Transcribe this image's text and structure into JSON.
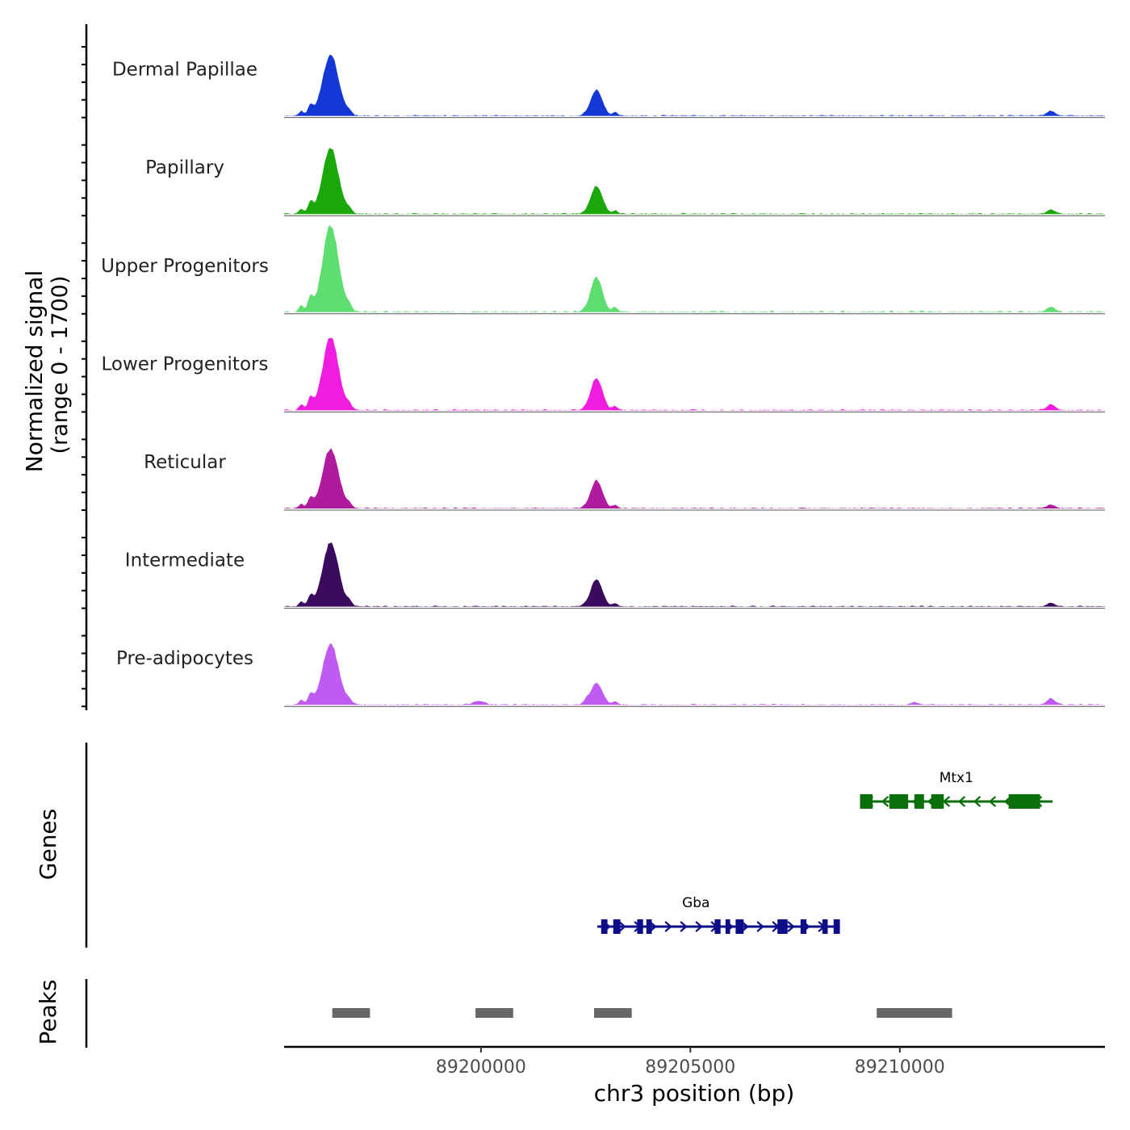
{
  "chart_data": {
    "type": "area",
    "title": "",
    "ylabel_line1": "Normalized signal",
    "ylabel_line2": "(range 0 - 1700)",
    "ylim": [
      0,
      1700
    ],
    "xlabel": "chr3 position (bp)",
    "xlim": [
      89195300,
      89214900
    ],
    "x_ticks": [
      {
        "value": 89200000,
        "label": "89200000"
      },
      {
        "value": 89205000,
        "label": "89205000"
      },
      {
        "value": 89210000,
        "label": "89210000"
      }
    ],
    "series": [
      {
        "name": "Dermal Papillae",
        "color": "#1438d6",
        "scale": 1.0,
        "p1": 1.0,
        "p2": 0.42,
        "p3": 0.08,
        "adi": 0.0
      },
      {
        "name": "Papillary",
        "color": "#1aa70a",
        "scale": 1.08,
        "p1": 1.0,
        "p2": 0.42,
        "p3": 0.06,
        "adi": 0.0
      },
      {
        "name": "Upper Progenitors",
        "color": "#5fde70",
        "scale": 1.42,
        "p1": 1.0,
        "p2": 0.4,
        "p3": 0.06,
        "adi": 0.0
      },
      {
        "name": "Lower Progenitors",
        "color": "#f01ce0",
        "scale": 1.18,
        "p1": 1.0,
        "p2": 0.44,
        "p3": 0.08,
        "adi": 0.0
      },
      {
        "name": "Reticular",
        "color": "#b01a9e",
        "scale": 0.98,
        "p1": 1.0,
        "p2": 0.46,
        "p3": 0.06,
        "adi": 0.0
      },
      {
        "name": "Intermediate",
        "color": "#3a0a5e",
        "scale": 1.05,
        "p1": 1.0,
        "p2": 0.42,
        "p3": 0.05,
        "adi": 0.0
      },
      {
        "name": "Pre-adipocytes",
        "color": "#c05af2",
        "scale": 1.0,
        "p1": 1.0,
        "p2": 0.35,
        "p3": 0.1,
        "adi": 1.0
      }
    ],
    "peaks_common": [
      {
        "center": 89196410,
        "width": 190
      },
      {
        "center": 89202760,
        "width": 140
      },
      {
        "center": 89213610,
        "width": 100
      }
    ],
    "genes_label": "Genes",
    "genes": [
      {
        "name": "Mtx1",
        "start": 89209050,
        "end": 89213650,
        "strand": "-",
        "color": "#0a6e0a",
        "row": 1,
        "exons": [
          [
            89209050,
            89209350
          ],
          [
            89209750,
            89210200
          ],
          [
            89210350,
            89210580
          ],
          [
            89210750,
            89211050
          ],
          [
            89212600,
            89213000
          ],
          [
            89213000,
            89213350
          ]
        ]
      },
      {
        "name": "Gba",
        "start": 89202780,
        "end": 89208570,
        "strand": "+",
        "color": "#0d0d8a",
        "row": 2,
        "exons": [
          [
            89202870,
            89203020
          ],
          [
            89203160,
            89203330
          ],
          [
            89203730,
            89203870
          ],
          [
            89203950,
            89204080
          ],
          [
            89205580,
            89205720
          ],
          [
            89205840,
            89205950
          ],
          [
            89206080,
            89206270
          ],
          [
            89207080,
            89207320
          ],
          [
            89207630,
            89207770
          ],
          [
            89208150,
            89208280
          ],
          [
            89208420,
            89208570
          ]
        ]
      }
    ],
    "peaks_label": "Peaks",
    "peak_regions": [
      {
        "start": 89196450,
        "end": 89197350
      },
      {
        "start": 89199870,
        "end": 89200770
      },
      {
        "start": 89202700,
        "end": 89203600
      },
      {
        "start": 89209450,
        "end": 89211250
      }
    ]
  }
}
